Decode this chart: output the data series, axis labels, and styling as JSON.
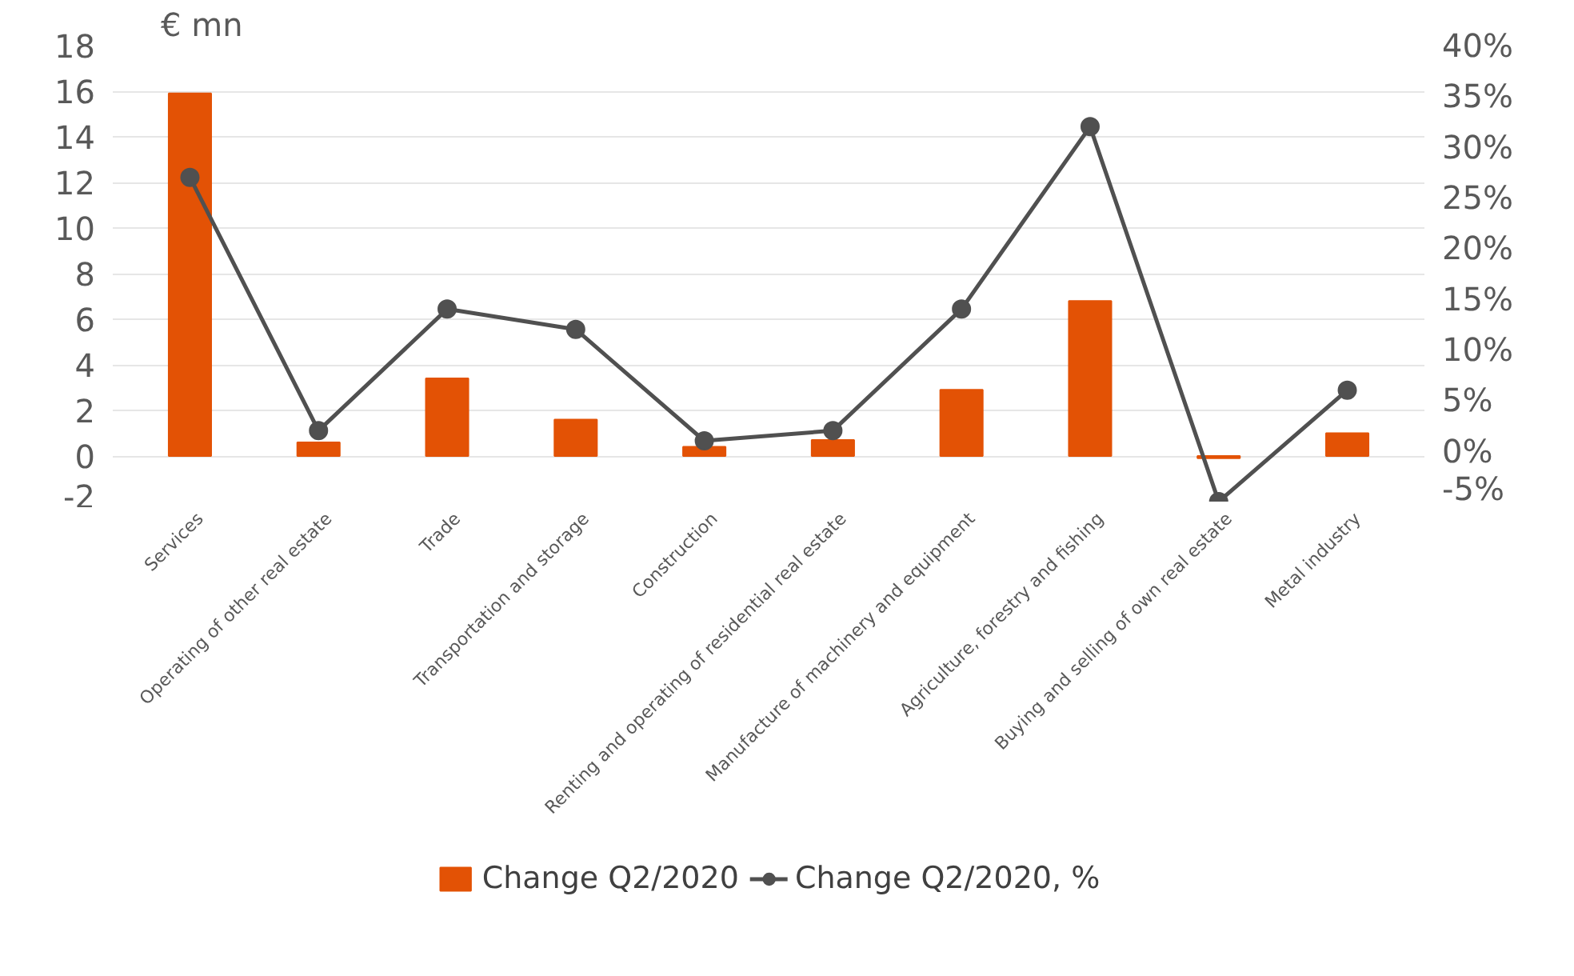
{
  "chart_data": {
    "type": "bar",
    "ylabel": "€ mn",
    "categories": [
      "Services",
      "Operating of other real estate",
      "Trade",
      "Transportation and storage",
      "Construction",
      "Renting and operating of residential real estate",
      "Manufacture of machinery and equipment",
      "Agriculture, forestry and fishing",
      "Buying and selling of own real estate",
      "Metal industry"
    ],
    "series": [
      {
        "name": "Change Q2/2020",
        "color": "#e35205",
        "values": [
          15.9,
          0.6,
          3.4,
          1.6,
          0.4,
          0.7,
          2.9,
          6.8,
          -0.1,
          1.0
        ]
      },
      {
        "name": "Change Q2/2020, %",
        "type": "line",
        "axis": "y2",
        "color": "#505050",
        "values": [
          27,
          2,
          14,
          12,
          1,
          2,
          14,
          32,
          -5,
          6
        ]
      }
    ],
    "ylim": [
      -2,
      18
    ],
    "yticks": [
      -2,
      0,
      2,
      4,
      6,
      8,
      10,
      12,
      14,
      16,
      18
    ],
    "y2lim": [
      -5,
      40
    ],
    "y2ticks": [
      {
        "value": -5,
        "label": "-5%"
      },
      {
        "value": 0,
        "label": "0%"
      },
      {
        "value": 5,
        "label": "5%"
      },
      {
        "value": 10,
        "label": "10%"
      },
      {
        "value": 15,
        "label": "15%"
      },
      {
        "value": 20,
        "label": "20%"
      },
      {
        "value": 25,
        "label": "25%"
      },
      {
        "value": 30,
        "label": "30%"
      },
      {
        "value": 35,
        "label": "35%"
      },
      {
        "value": 40,
        "label": "40%"
      }
    ],
    "grid": "y",
    "legend": "bottom",
    "marker": "circle",
    "line_style": "solid"
  }
}
